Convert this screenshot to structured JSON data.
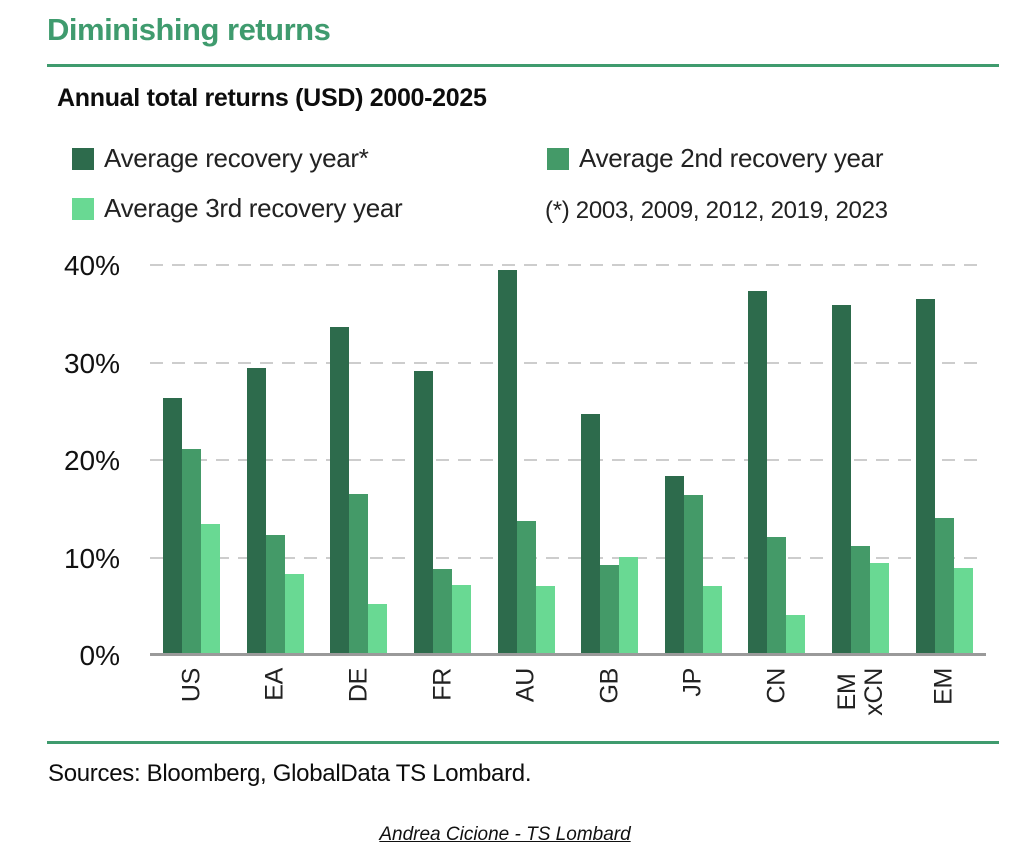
{
  "page": {
    "title": "Diminishing returns",
    "subtitle": "Annual total returns (USD) 2000-2025",
    "footnote": "(*) 2003, 2009, 2012, 2019, 2023",
    "sources": "Sources: Bloomberg, GlobalData TS Lombard.",
    "credit": "Andrea Cicione - TS Lombard",
    "accent_green": "#3f9b6e"
  },
  "chart_data": {
    "type": "bar",
    "title": "Annual total returns (USD) 2000-2025",
    "categories": [
      "US",
      "EA",
      "DE",
      "FR",
      "AU",
      "GB",
      "JP",
      "CN",
      "EM xCN",
      "EM"
    ],
    "series": [
      {
        "name": "Average recovery year*",
        "color": "#2d6b4c",
        "values": [
          26.3,
          29.3,
          33.5,
          29.0,
          39.4,
          24.6,
          18.3,
          37.2,
          35.8,
          36.4
        ]
      },
      {
        "name": "Average 2nd recovery year",
        "color": "#449a68",
        "values": [
          21.0,
          12.2,
          16.4,
          8.7,
          13.6,
          9.1,
          16.3,
          12.0,
          11.1,
          14.0
        ]
      },
      {
        "name": "Average 3rd recovery year",
        "color": "#69d993",
        "values": [
          13.3,
          8.2,
          5.1,
          7.1,
          7.0,
          9.9,
          7.0,
          4.0,
          9.3,
          8.8
        ]
      }
    ],
    "xlabel": "",
    "ylabel": "",
    "ylim": [
      0,
      40
    ],
    "yticks": [
      "0%",
      "10%",
      "20%",
      "30%",
      "40%"
    ],
    "ytick_values": [
      0,
      10,
      20,
      30,
      40
    ],
    "grid": "horizontal dashed",
    "legend_position": "top",
    "annotation": "(*) 2003, 2009, 2012, 2019, 2023",
    "x_tick_rotation_deg": 90
  }
}
